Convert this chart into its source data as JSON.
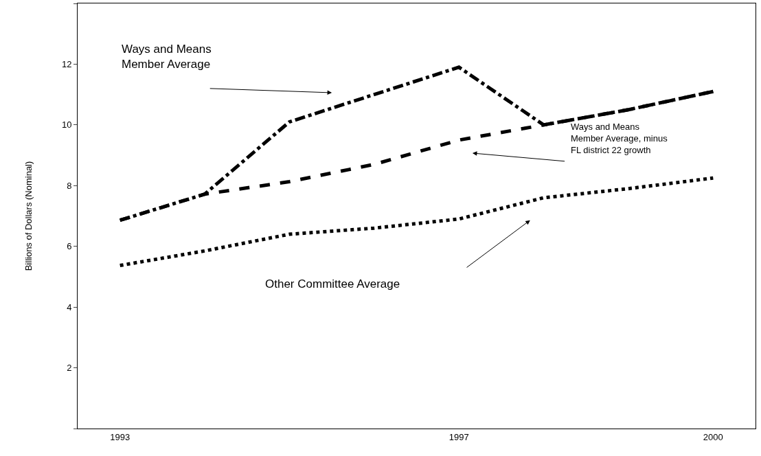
{
  "chart_data": {
    "type": "line",
    "ylabel": "Billions of Dollars (Nominal)",
    "categories": [
      "1993",
      null,
      null,
      null,
      "1997",
      null,
      null,
      "2000"
    ],
    "ylim": [
      0,
      14
    ],
    "yticks": [
      {
        "value": 0,
        "label": null
      },
      2,
      4,
      6,
      8,
      10,
      12,
      {
        "value": 14,
        "label": null
      }
    ],
    "legend": false,
    "marker": "none",
    "annotations": [
      "Ways and Means\nMember Average",
      "Ways and Means\nMember Average, minus\nFL district 22 growth",
      "Other Committee Average"
    ],
    "series": [
      {
        "color": "#000000",
        "line_style": "dashdot",
        "values": [
          6.86,
          7.72,
          10.1,
          11.0,
          11.9,
          10.0,
          10.5,
          11.1
        ]
      },
      {
        "color": "#000000",
        "line_style": "dashed",
        "values": [
          6.86,
          7.72,
          8.13,
          8.7,
          9.5,
          10.0,
          10.5,
          11.1
        ]
      },
      {
        "color": "#000000",
        "line_style": "dotted",
        "values": [
          5.37,
          5.85,
          6.4,
          6.6,
          6.9,
          7.6,
          7.9,
          8.25
        ]
      }
    ]
  }
}
